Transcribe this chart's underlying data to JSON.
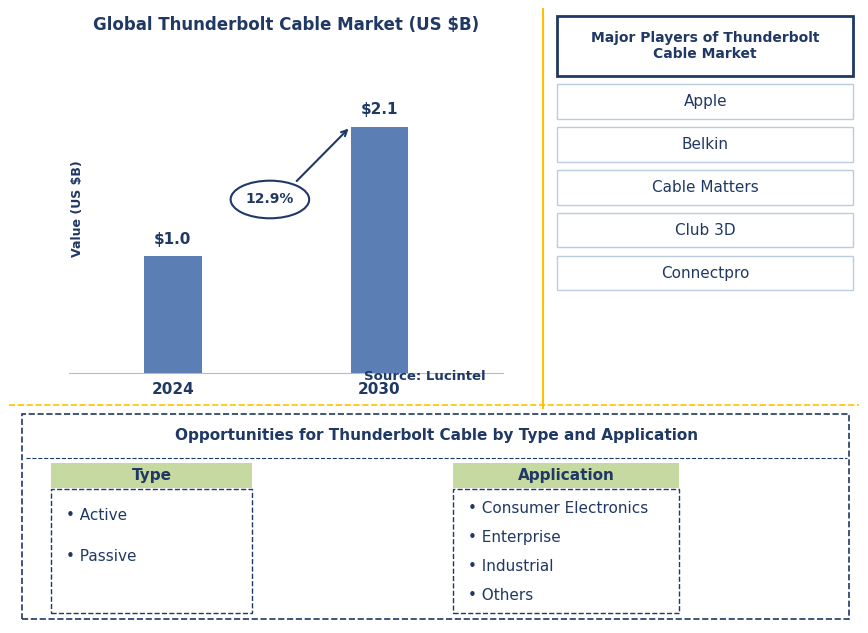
{
  "chart_title": "Global Thunderbolt Cable Market (US $B)",
  "bar_years": [
    "2024",
    "2030"
  ],
  "bar_values": [
    1.0,
    2.1
  ],
  "bar_labels": [
    "$1.0",
    "$2.1"
  ],
  "bar_color": "#5B7FB5",
  "ylabel": "Value (US $B)",
  "cagr_text": "12.9%",
  "source_text": "Source: Lucintel",
  "major_players_title": "Major Players of Thunderbolt\nCable Market",
  "major_players": [
    "Apple",
    "Belkin",
    "Cable Matters",
    "Club 3D",
    "Connectpro"
  ],
  "opportunities_title": "Opportunities for Thunderbolt Cable by Type and Application",
  "type_header": "Type",
  "type_items": [
    "Active",
    "Passive"
  ],
  "application_header": "Application",
  "application_items": [
    "Consumer Electronics",
    "Enterprise",
    "Industrial",
    "Others"
  ],
  "dark_blue": "#1F3864",
  "bar_blue": "#5B7FB5",
  "player_box_fill": "#ffffff",
  "player_box_edge": "#BBDDEE",
  "green_header": "#C5D9A0",
  "orange_border": "#FFC000",
  "divider_color": "#FFC000"
}
